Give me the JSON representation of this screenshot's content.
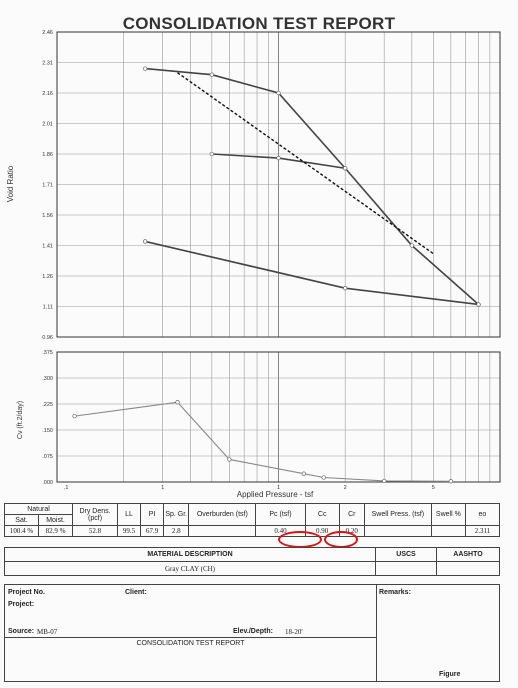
{
  "report": {
    "title": "CONSOLIDATION TEST REPORT"
  },
  "chart_data": [
    {
      "type": "line",
      "ylabel": "Void Ratio",
      "y_ticks": [
        "2.46",
        "2.31",
        "2.16",
        "2.01",
        "1.86",
        "1.71",
        "1.56",
        "1.41",
        "1.26",
        "1.11",
        "0.96"
      ],
      "ylim": [
        0.96,
        2.46
      ],
      "xscale": "log",
      "xlim": [
        0.1,
        10
      ],
      "grid": true,
      "series": [
        {
          "values": [
            {
              "x": 0.25,
              "y": 2.28
            },
            {
              "x": 0.5,
              "y": 2.25
            },
            {
              "x": 1.0,
              "y": 2.16
            },
            {
              "x": 2.0,
              "y": 1.79
            },
            {
              "x": 4.0,
              "y": 1.41
            },
            {
              "x": 8.0,
              "y": 1.12
            }
          ]
        },
        {
          "values": [
            {
              "x": 0.5,
              "y": 1.86
            },
            {
              "x": 1.0,
              "y": 1.84
            },
            {
              "x": 2.0,
              "y": 1.79
            }
          ]
        },
        {
          "values": [
            {
              "x": 0.25,
              "y": 1.43
            },
            {
              "x": 2.0,
              "y": 1.2
            },
            {
              "x": 8.0,
              "y": 1.12
            }
          ]
        },
        {
          "style": "dashed",
          "values": [
            {
              "x": 0.35,
              "y": 2.26
            },
            {
              "x": 5.0,
              "y": 1.37
            }
          ]
        }
      ]
    },
    {
      "type": "line",
      "ylabel": "Cv (ft.2/day)",
      "y_ticks": [
        ".375",
        ".300",
        ".225",
        ".150",
        ".075",
        ".000"
      ],
      "ylim": [
        0,
        0.375
      ],
      "xscale": "log",
      "xlim": [
        0.1,
        10
      ],
      "x_ticks": [
        ".1",
        "1",
        "1",
        "2",
        "5"
      ],
      "xlabel": "Applied Pressure - tsf",
      "grid": true,
      "series": [
        {
          "values": [
            {
              "x": 0.12,
              "y": 0.19
            },
            {
              "x": 0.35,
              "y": 0.23
            },
            {
              "x": 0.6,
              "y": 0.065
            },
            {
              "x": 1.3,
              "y": 0.024
            },
            {
              "x": 1.6,
              "y": 0.013
            },
            {
              "x": 3.0,
              "y": 0.003
            },
            {
              "x": 6.0,
              "y": 0.002
            }
          ]
        }
      ]
    }
  ],
  "properties": {
    "headers": {
      "natural": "Natural",
      "sat": "Sat.",
      "moist": "Moist.",
      "dry_dens": "Dry Dens. (pcf)",
      "ll": "LL",
      "pi": "PI",
      "sp_gr": "Sp. Gr.",
      "overburden": "Overburden (tsf)",
      "pc": "Pc (tsf)",
      "cc": "Cc",
      "cr": "Cr",
      "swell_press": "Swell Press. (tsf)",
      "swell_pct": "Swell %",
      "eo": "eo"
    },
    "values": {
      "sat": "100.4 %",
      "moist": "82.9 %",
      "dry_dens": "52.8",
      "ll": "99.5",
      "pi": "67.9",
      "sp_gr": "2.8",
      "overburden": "",
      "pc": "0.40",
      "cc": "0.90",
      "cr": "0.20",
      "swell_press": "",
      "swell_pct": "",
      "eo": "2.311"
    }
  },
  "material": {
    "header": "MATERIAL DESCRIPTION",
    "uscs": "USCS",
    "aashto": "AASHTO",
    "description": "Gray CLAY (CH)"
  },
  "project": {
    "project_no_label": "Project No.",
    "client_label": "Client:",
    "project_label": "Project:",
    "source_label": "Source:",
    "source_value": "MB-07",
    "elev_label": "Elev./Depth:",
    "elev_value": "18-20'",
    "report_label": "CONSOLIDATION TEST REPORT",
    "remarks_label": "Remarks:",
    "figure_label": "Figure"
  }
}
